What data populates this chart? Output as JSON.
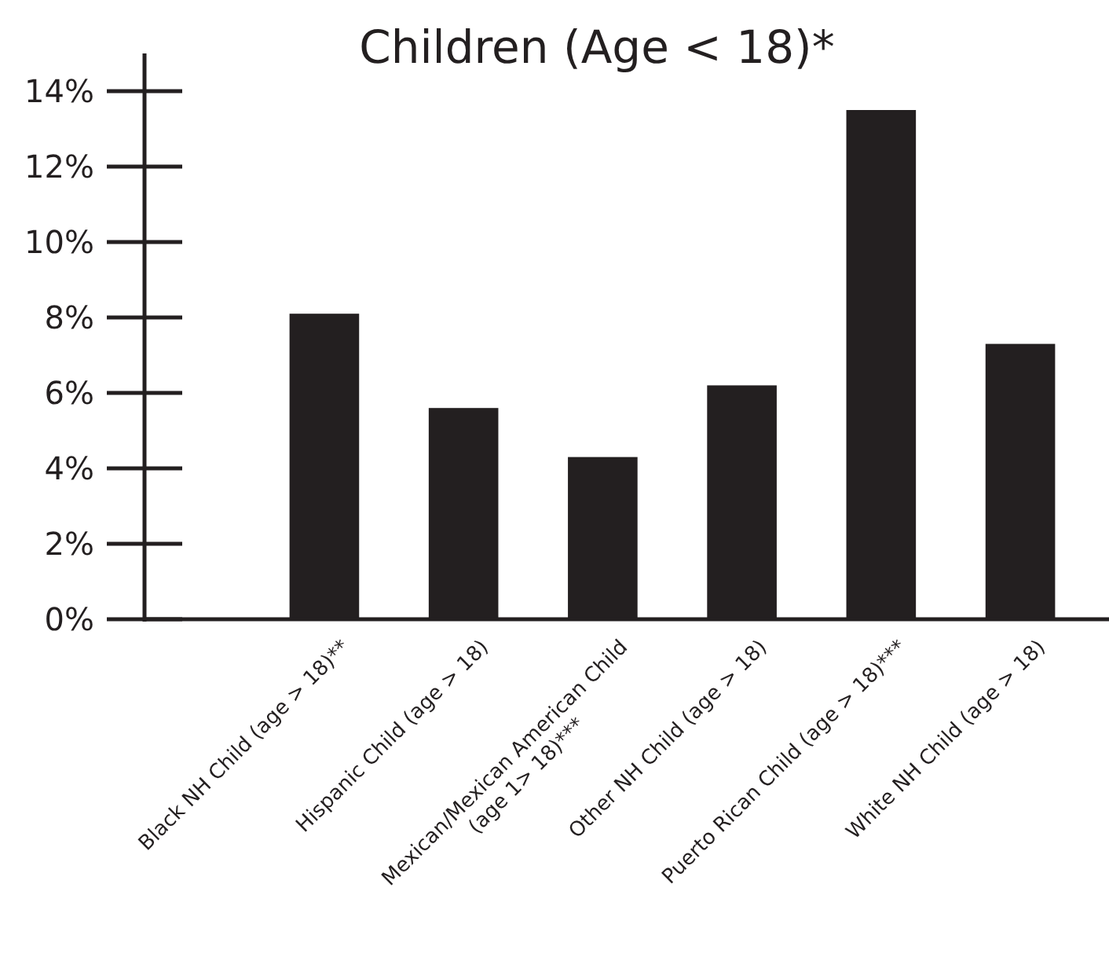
{
  "chart_data": {
    "type": "bar",
    "title": "Children (Age < 18)*",
    "categories": [
      "Black NH Child (age > 18)**",
      "Hispanic Child (age > 18)",
      "Mexican/Mexican American Child\n(age 1> 18)***",
      "Other NH Child (age > 18)",
      "Puerto Rican Child (age > 18)***",
      "White NH Child (age > 18)"
    ],
    "values": [
      8.1,
      5.6,
      4.3,
      6.2,
      13.5,
      7.3
    ],
    "color": "#231f20",
    "ylim": [
      0,
      15
    ],
    "yticks": [
      {
        "value": 0,
        "label": "0%"
      },
      {
        "value": 2,
        "label": "2%"
      },
      {
        "value": 4,
        "label": "4%"
      },
      {
        "value": 6,
        "label": "6%"
      },
      {
        "value": 8,
        "label": "8%"
      },
      {
        "value": 10,
        "label": "10%"
      },
      {
        "value": 12,
        "label": "12%"
      },
      {
        "value": 14,
        "label": "14%"
      }
    ],
    "grid": false
  }
}
